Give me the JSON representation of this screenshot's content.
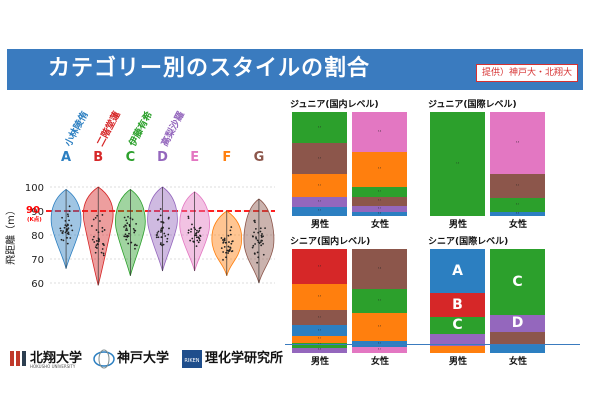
{
  "header": {
    "title": "カテゴリー別のスタイルの割合",
    "credit": "提供）神戸大・北翔大"
  },
  "colors": {
    "banner": "#3a7bbf",
    "cat_A": "#2c7fc1",
    "cat_B": "#d62728",
    "cat_C": "#2ca02c",
    "cat_D": "#9467bd",
    "cat_E": "#e377c2",
    "cat_F": "#ff7f0e",
    "cat_G": "#8c564b"
  },
  "chart_data": [
    {
      "type": "violin",
      "title": "",
      "ylabel": "飛距離（m）",
      "ylim": [
        55,
        105
      ],
      "yticks": [
        60,
        70,
        80,
        90,
        100
      ],
      "reference_line": {
        "value": 90,
        "label": "90",
        "sublabel": "(K点)",
        "color": "#ff0000"
      },
      "categories": [
        "A",
        "B",
        "C",
        "D",
        "E",
        "F",
        "G"
      ],
      "category_colors": [
        "#2c7fc1",
        "#d62728",
        "#2ca02c",
        "#9467bd",
        "#e377c2",
        "#ff7f0e",
        "#8c564b"
      ],
      "athlete_labels": [
        {
          "category": "A",
          "name": "小林陵侑"
        },
        {
          "category": "B",
          "name": "二階堂蓮"
        },
        {
          "category": "C",
          "name": "伊藤有希"
        },
        {
          "category": "D",
          "name": "高梨沙羅"
        }
      ],
      "series": [
        {
          "category": "A",
          "min": 66,
          "max": 99,
          "median": 84
        },
        {
          "category": "B",
          "min": 59,
          "max": 100,
          "median": 86
        },
        {
          "category": "C",
          "min": 63,
          "max": 99,
          "median": 83
        },
        {
          "category": "D",
          "min": 65,
          "max": 100,
          "median": 84
        },
        {
          "category": "E",
          "min": 65,
          "max": 98,
          "median": 82
        },
        {
          "category": "F",
          "min": 63,
          "max": 90,
          "median": 76
        },
        {
          "category": "G",
          "min": 60,
          "max": 95,
          "median": 75
        }
      ]
    },
    {
      "type": "stacked-bar",
      "panels": [
        {
          "title": "ジュニア(国内レベル)",
          "bars": [
            {
              "label": "男性",
              "segments": [
                {
                  "cat": "C",
                  "pct": 0.3,
                  "val": "0.3"
                },
                {
                  "cat": "G",
                  "pct": 0.3,
                  "val": "0.3"
                },
                {
                  "cat": "F",
                  "pct": 0.22,
                  "val": "0.2"
                },
                {
                  "cat": "D",
                  "pct": 0.09,
                  "val": "0.1"
                },
                {
                  "cat": "A",
                  "pct": 0.09,
                  "val": "0.1"
                }
              ]
            },
            {
              "label": "女性",
              "segments": [
                {
                  "cat": "E",
                  "pct": 0.38,
                  "val": "0.4"
                },
                {
                  "cat": "F",
                  "pct": 0.34,
                  "val": "0.3"
                },
                {
                  "cat": "C",
                  "pct": 0.1,
                  "val": "0.1"
                },
                {
                  "cat": "G",
                  "pct": 0.08,
                  "val": "0.1"
                },
                {
                  "cat": "D",
                  "pct": 0.06,
                  "val": "0.1"
                },
                {
                  "cat": "A",
                  "pct": 0.04,
                  "val": "0.0"
                }
              ]
            }
          ]
        },
        {
          "title": "ジュニア(国際レベル)",
          "bars": [
            {
              "label": "男性",
              "segments": [
                {
                  "cat": "C",
                  "pct": 1.0,
                  "val": "1.0"
                }
              ]
            },
            {
              "label": "女性",
              "segments": [
                {
                  "cat": "E",
                  "pct": 0.6,
                  "val": "0.6"
                },
                {
                  "cat": "G",
                  "pct": 0.23,
                  "val": "0.2"
                },
                {
                  "cat": "C",
                  "pct": 0.13,
                  "val": "0.1"
                },
                {
                  "cat": "A",
                  "pct": 0.04,
                  "val": "0.0"
                }
              ]
            }
          ]
        },
        {
          "title": "シニア(国内レベル)",
          "bars": [
            {
              "label": "男性",
              "segments": [
                {
                  "cat": "B",
                  "pct": 0.34,
                  "val": "0.3"
                },
                {
                  "cat": "F",
                  "pct": 0.25,
                  "val": "0.3"
                },
                {
                  "cat": "G",
                  "pct": 0.14,
                  "val": "0.1"
                },
                {
                  "cat": "A",
                  "pct": 0.11,
                  "val": "0.1"
                },
                {
                  "cat": "F",
                  "pct": 0.06,
                  "val": "0.1"
                },
                {
                  "cat": "C",
                  "pct": 0.05,
                  "val": "0.0"
                },
                {
                  "cat": "D",
                  "pct": 0.05,
                  "val": "0.0"
                }
              ]
            },
            {
              "label": "女性",
              "segments": [
                {
                  "cat": "G",
                  "pct": 0.38,
                  "val": "0.4"
                },
                {
                  "cat": "C",
                  "pct": 0.24,
                  "val": "0.2"
                },
                {
                  "cat": "F",
                  "pct": 0.26,
                  "val": "0.3"
                },
                {
                  "cat": "A",
                  "pct": 0.06,
                  "val": "0.1"
                },
                {
                  "cat": "E",
                  "pct": 0.06,
                  "val": "0.1"
                }
              ]
            }
          ]
        },
        {
          "title": "シニア(国際レベル)",
          "bars": [
            {
              "label": "男性",
              "segments": [
                {
                  "cat": "A",
                  "pct": 0.42,
                  "val": "A"
                },
                {
                  "cat": "B",
                  "pct": 0.23,
                  "val": "B"
                },
                {
                  "cat": "C",
                  "pct": 0.17,
                  "val": "C"
                },
                {
                  "cat": "D",
                  "pct": 0.11,
                  "val": ""
                },
                {
                  "cat": "F",
                  "pct": 0.07,
                  "val": ""
                }
              ]
            },
            {
              "label": "女性",
              "segments": [
                {
                  "cat": "C",
                  "pct": 0.63,
                  "val": "C"
                },
                {
                  "cat": "D",
                  "pct": 0.17,
                  "val": "D"
                },
                {
                  "cat": "G",
                  "pct": 0.12,
                  "val": ""
                },
                {
                  "cat": "A",
                  "pct": 0.08,
                  "val": ""
                }
              ]
            }
          ]
        }
      ]
    }
  ],
  "footer": {
    "logo1": "北翔大学",
    "logo1_sub": "HOKUSHO UNIVERSITY",
    "logo2": "神戸大学",
    "logo3": "理化学研究所",
    "logo3_badge": "RIKEN"
  }
}
